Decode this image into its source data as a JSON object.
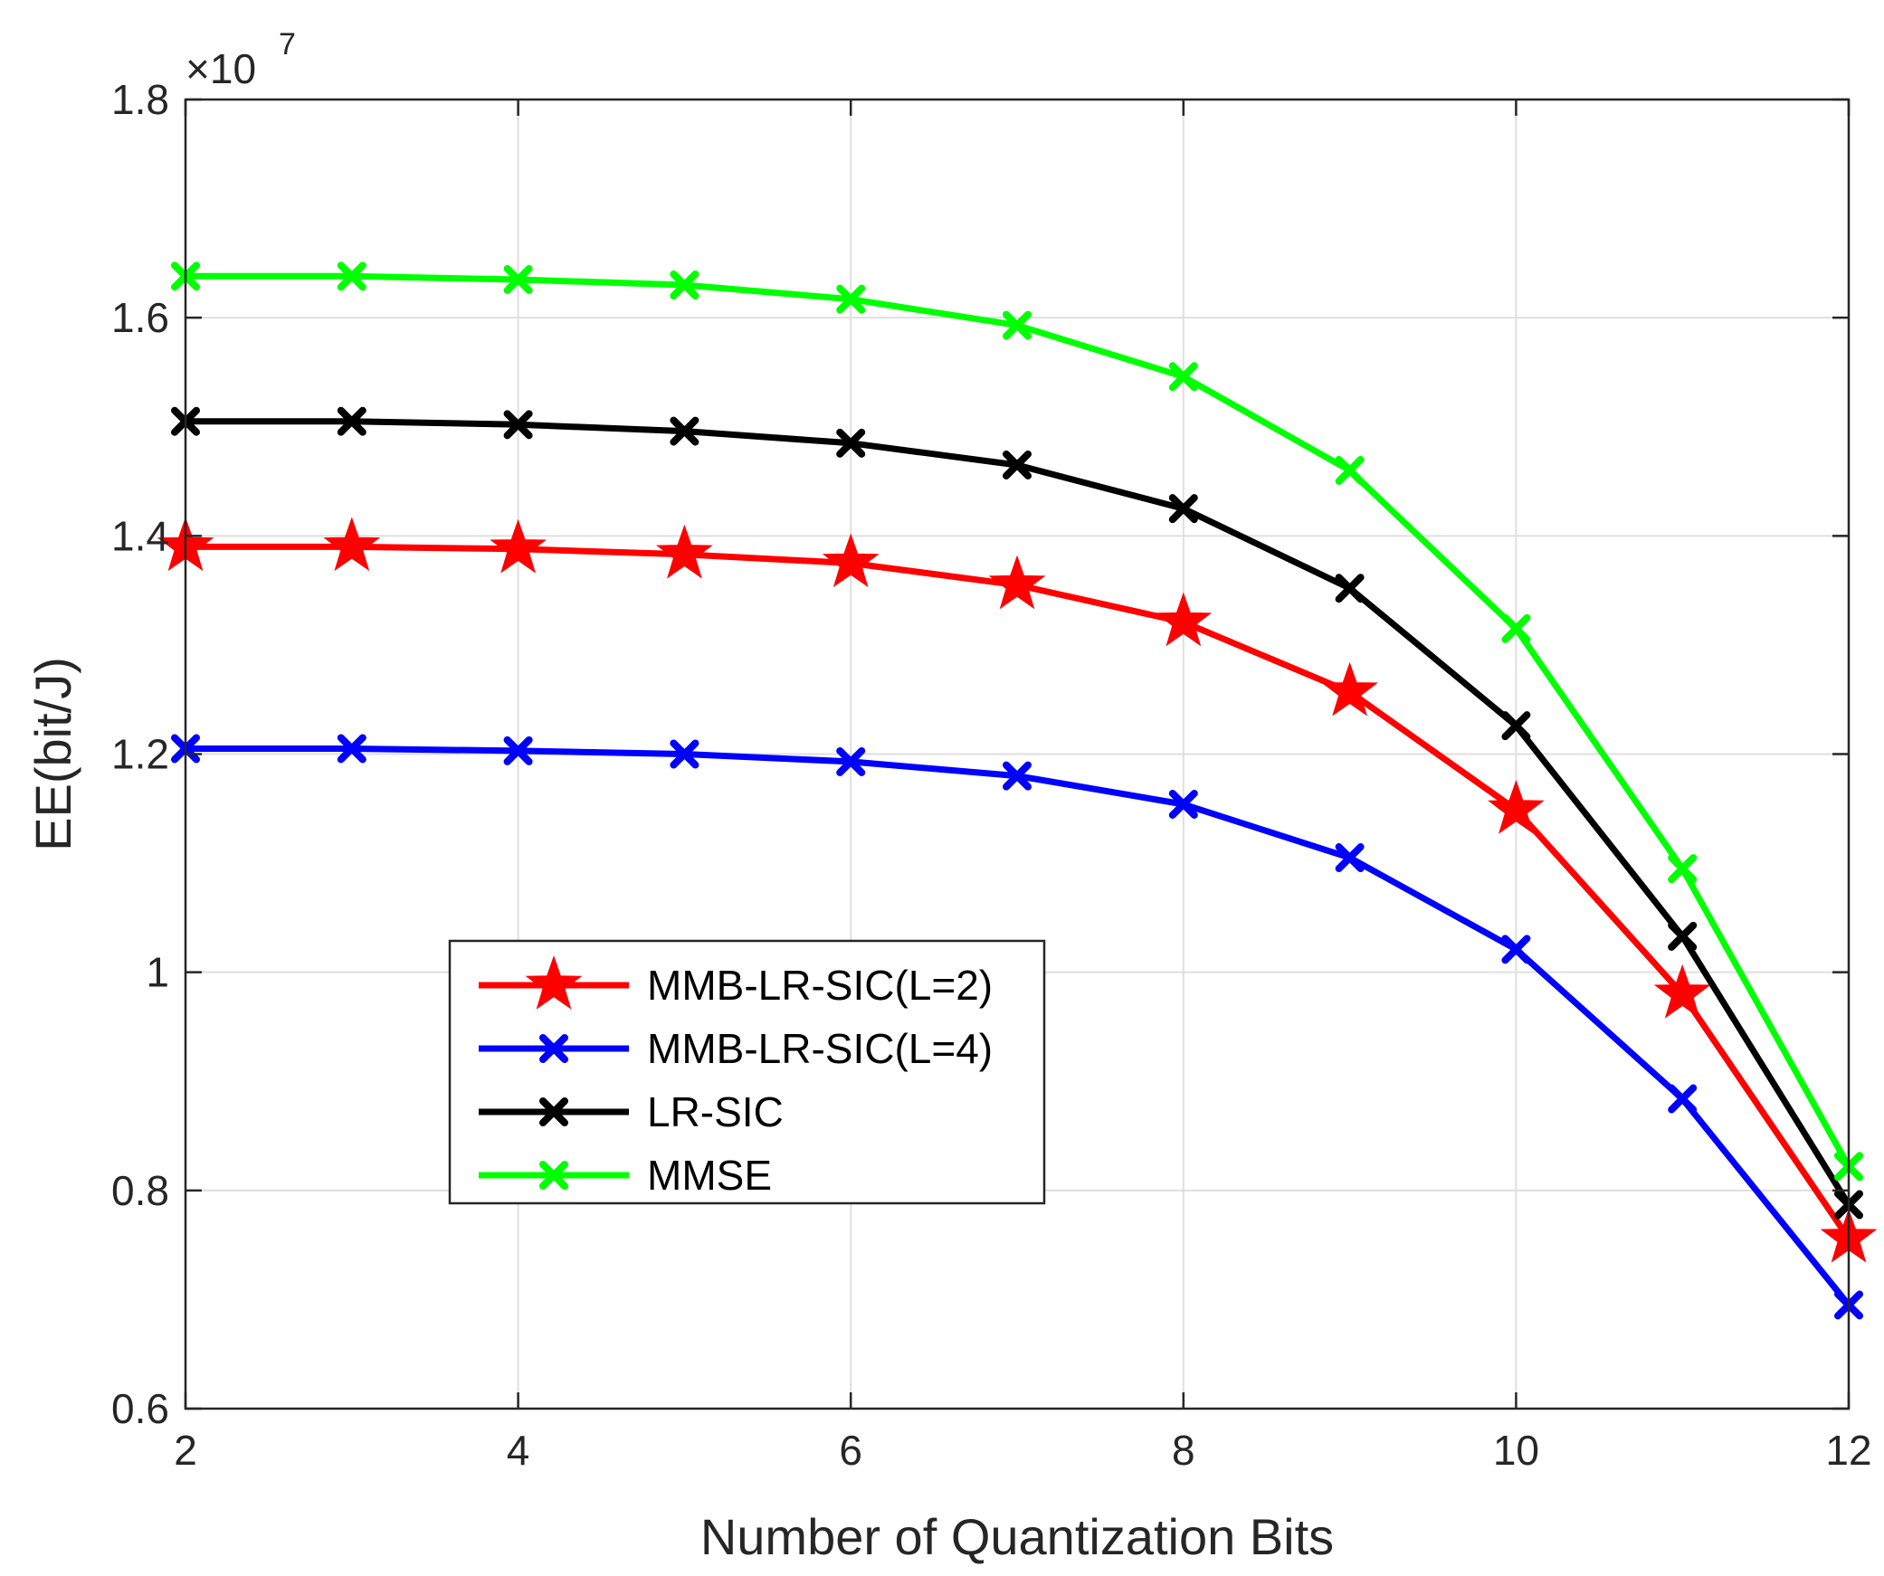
{
  "chart_data": {
    "type": "line",
    "xlabel": "Number of Quantization Bits",
    "ylabel": "EE(bit/J)",
    "y_multiplier_label": "×10",
    "y_multiplier_exponent": "7",
    "xlim": [
      2,
      12
    ],
    "ylim": [
      0.6,
      1.8
    ],
    "x_ticks": [
      2,
      4,
      6,
      8,
      10,
      12
    ],
    "x_tick_labels": [
      "2",
      "4",
      "6",
      "8",
      "10",
      "12"
    ],
    "y_ticks": [
      0.6,
      0.8,
      1.0,
      1.2,
      1.4,
      1.6,
      1.8
    ],
    "y_tick_labels": [
      "0.6",
      "0.8",
      "1",
      "1.2",
      "1.4",
      "1.6",
      "1.8"
    ],
    "grid": true,
    "legend_position": "lower-left",
    "x": [
      2,
      3,
      4,
      5,
      6,
      7,
      8,
      9,
      10,
      11,
      12
    ],
    "series": [
      {
        "name": "MMB-LR-SIC(L=2)",
        "color": "#ff0000",
        "marker": "star",
        "values": [
          1.39,
          1.39,
          1.388,
          1.383,
          1.375,
          1.355,
          1.321,
          1.257,
          1.149,
          0.98,
          0.756
        ]
      },
      {
        "name": "MMB-LR-SIC(L=4)",
        "color": "#0000ff",
        "marker": "x",
        "values": [
          1.205,
          1.205,
          1.203,
          1.2,
          1.193,
          1.18,
          1.154,
          1.105,
          1.021,
          0.884,
          0.695
        ]
      },
      {
        "name": "LR-SIC",
        "color": "#000000",
        "marker": "x",
        "values": [
          1.505,
          1.505,
          1.502,
          1.496,
          1.485,
          1.465,
          1.425,
          1.352,
          1.226,
          1.033,
          0.787
        ]
      },
      {
        "name": "MMSE",
        "color": "#00ff00",
        "marker": "x",
        "values": [
          1.638,
          1.638,
          1.635,
          1.63,
          1.617,
          1.593,
          1.546,
          1.46,
          1.315,
          1.095,
          0.822
        ]
      }
    ],
    "legend_order": [
      0,
      1,
      2,
      3
    ]
  }
}
